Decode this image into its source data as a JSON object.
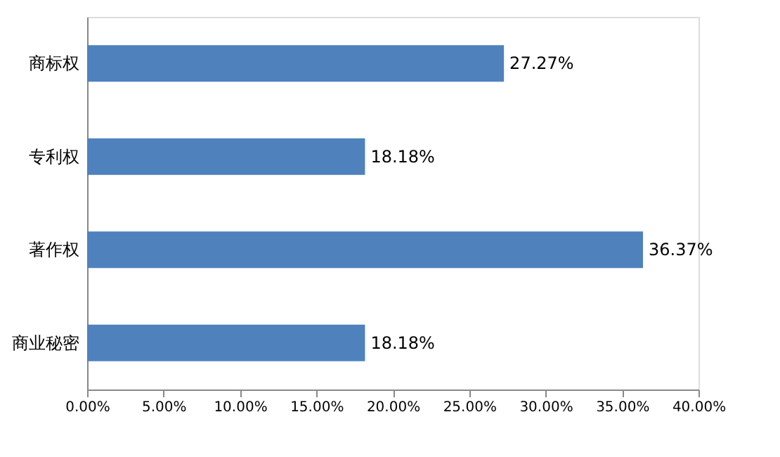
{
  "chart_data": {
    "type": "bar",
    "orientation": "horizontal",
    "categories": [
      "商标权",
      "专利权",
      "著作权",
      "商业秘密"
    ],
    "values": [
      27.27,
      18.18,
      36.37,
      18.18
    ],
    "value_labels": [
      "27.27%",
      "18.18%",
      "36.37%",
      "18.18%"
    ],
    "color": "#4f81bd",
    "xlim": [
      0,
      40
    ],
    "xticks": [
      {
        "value": 0,
        "label": "0.00%"
      },
      {
        "value": 5,
        "label": "5.00%"
      },
      {
        "value": 10,
        "label": "10.00%"
      },
      {
        "value": 15,
        "label": "15.00%"
      },
      {
        "value": 20,
        "label": "20.00%"
      },
      {
        "value": 25,
        "label": "25.00%"
      },
      {
        "value": 30,
        "label": "30.00%"
      },
      {
        "value": 35,
        "label": "35.00%"
      },
      {
        "value": 40,
        "label": "40.00%"
      }
    ],
    "grid": false
  }
}
